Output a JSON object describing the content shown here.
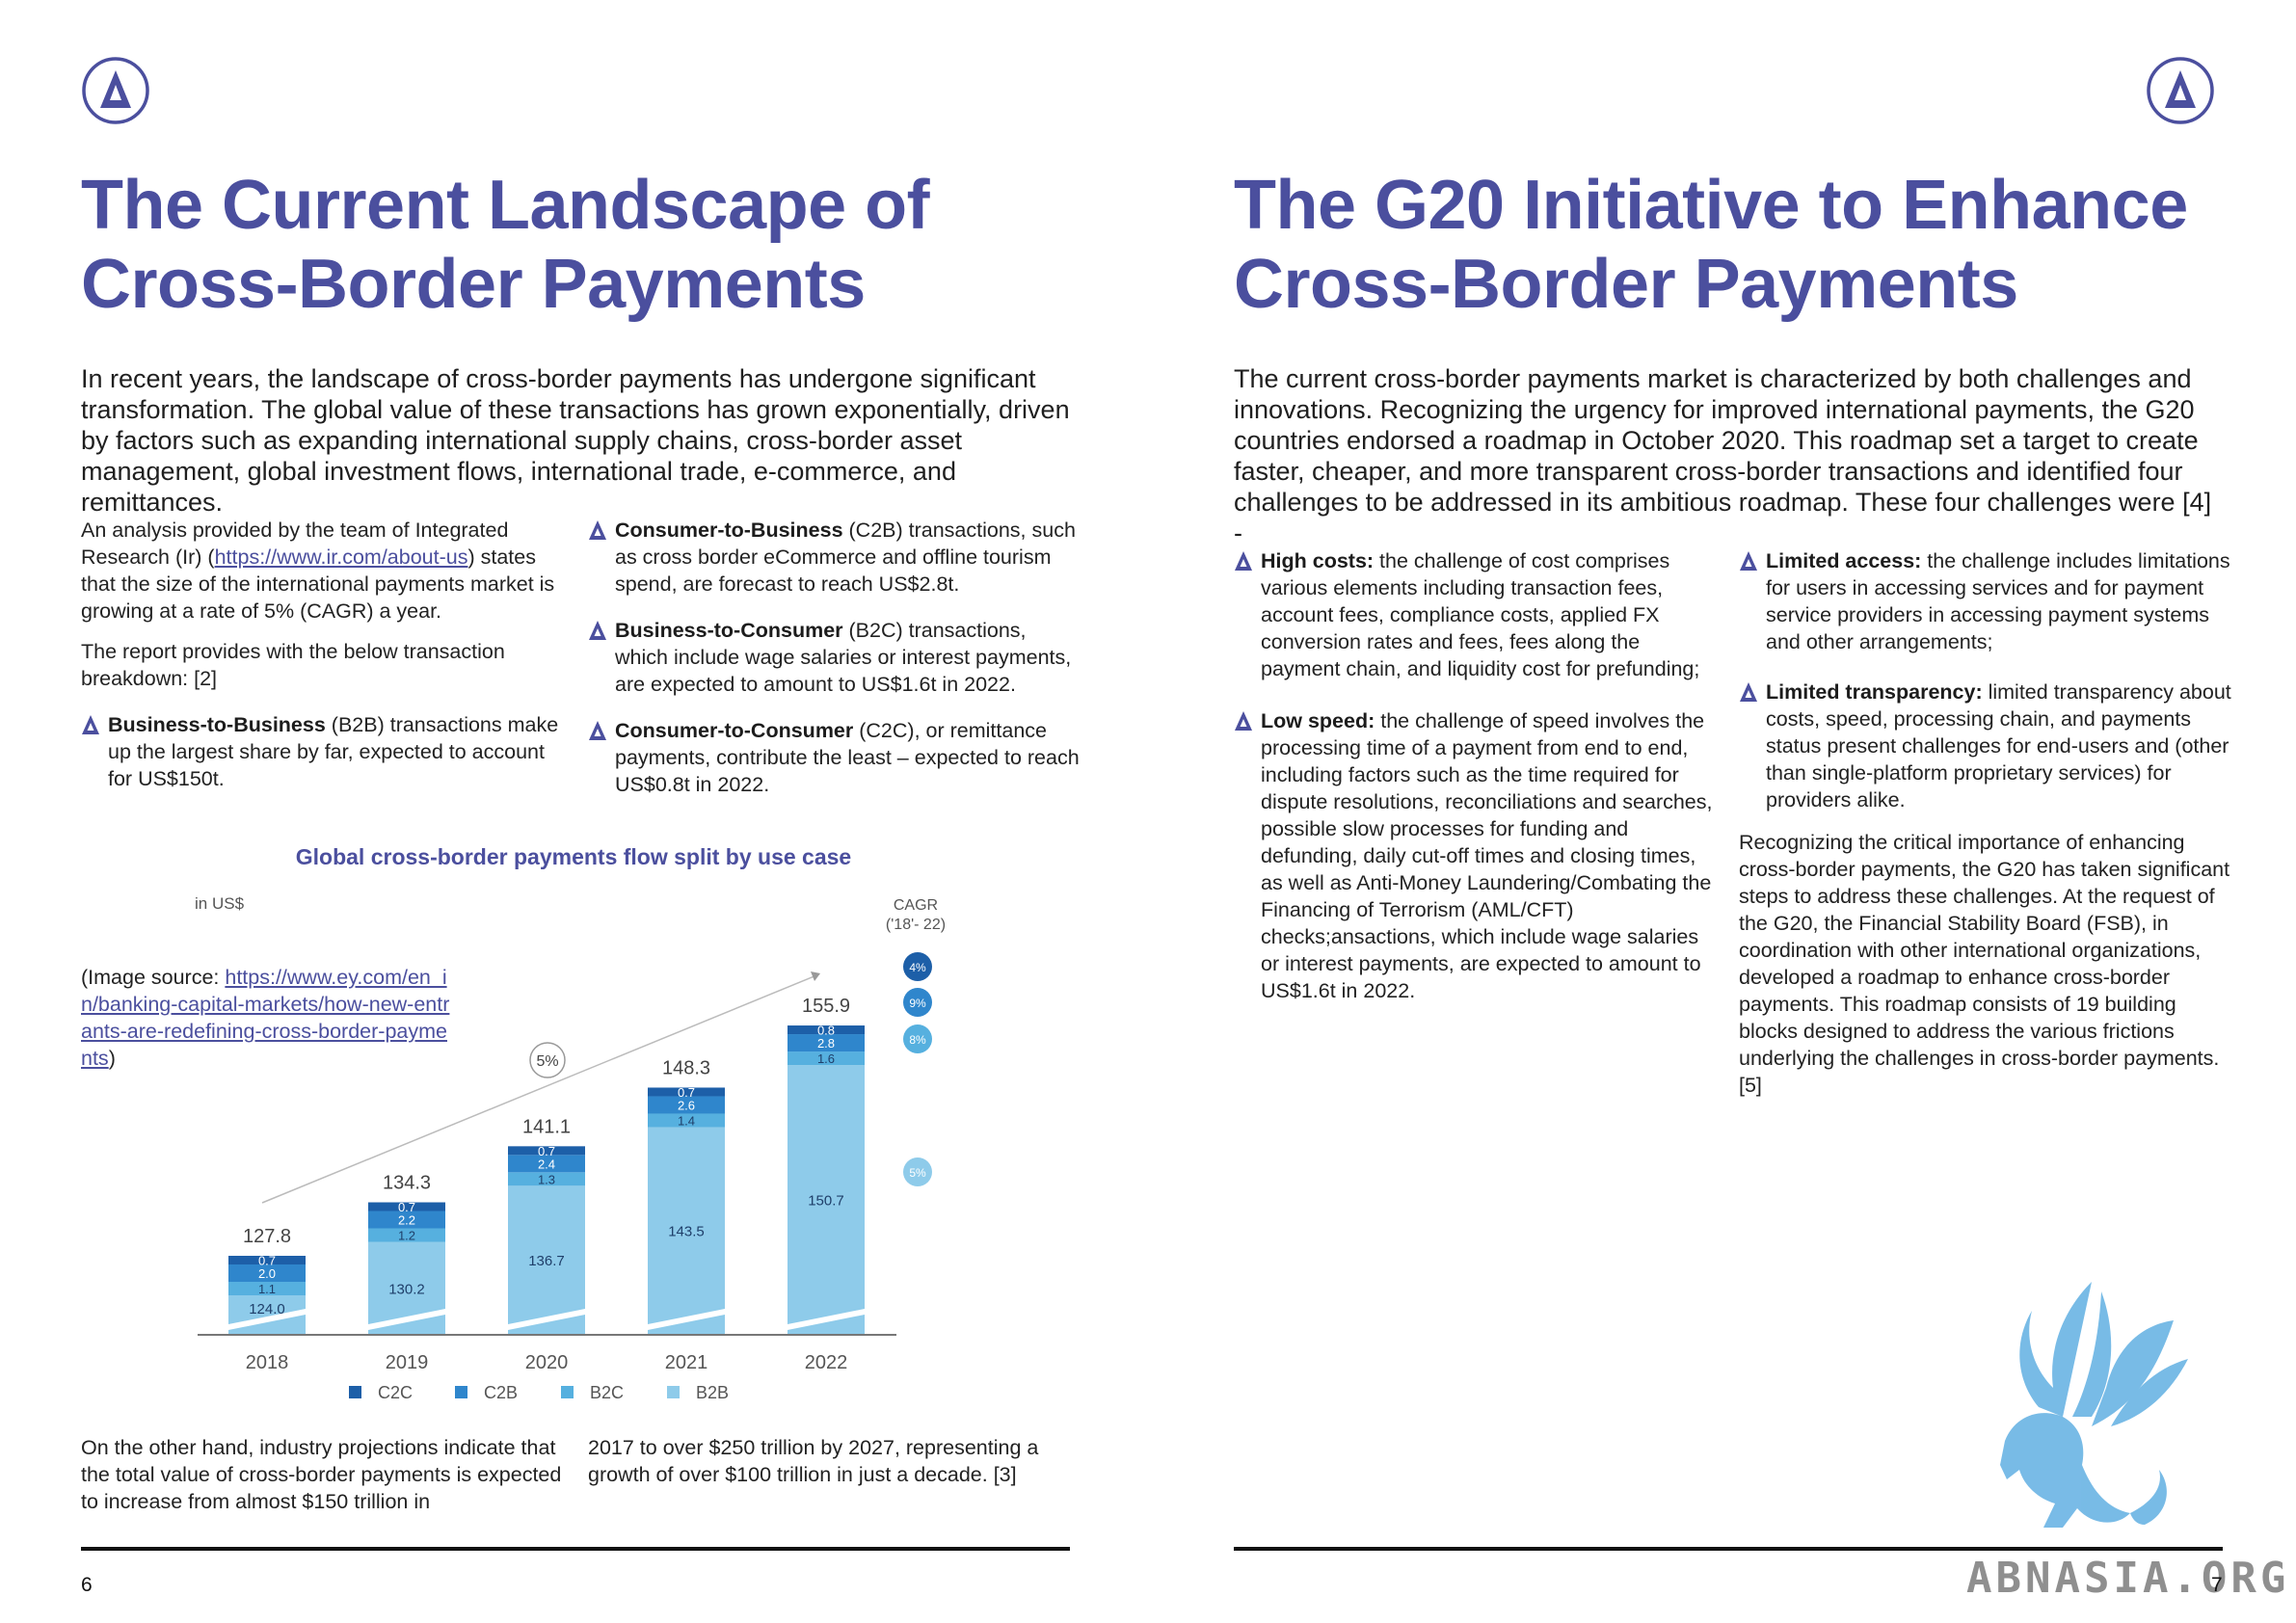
{
  "left": {
    "title_line1": "The Current Landscape of",
    "title_line2": "Cross-Border Payments",
    "intro": "In recent years, the landscape of cross-border payments has undergone significant transformation. The global value of these transactions has grown exponentially, driven by factors such as expanding international supply chains, cross-border asset management, global investment flows, international trade, e-commerce, and remittances.",
    "col1_p1_a": "An analysis provided by the team of Integrated Research (Ir) (",
    "col1_p1_link": "https://www.ir.com/about-us",
    "col1_p1_b": ") states that the size of the international payments market is growing at a rate of 5% (CAGR) a year.",
    "col1_p2": "The report provides with the below transaction breakdown: [2]",
    "b2b_bold": "Business-to-Business",
    "b2b_text": " (B2B) transactions make up the largest share by far, expected to account for US$150t.",
    "c2b_bold": "Consumer-to-Business",
    "c2b_text": " (C2B) transactions, such as cross border eCommerce and offline tourism spend, are forecast to reach US$2.8t.",
    "b2c_bold": "Business-to-Consumer",
    "b2c_text": " (B2C) transactions, which include wage salaries or interest payments, are expected to amount to US$1.6t in 2022.",
    "c2c_bold": "Consumer-to-Consumer",
    "c2c_text": " (C2C), or remittance payments, contribute the least – expected to reach US$0.8t in 2022.",
    "image_source_prefix": "(Image source: ",
    "image_source_link": "https://www.ey.com/en_in/banking-capital-markets/how-new-entrants-are-redefining-cross-border-payments",
    "image_source_suffix": ")",
    "bottom_col1": "On the other hand, industry projections indicate that the total value of cross-border payments is expected to increase from almost $150 trillion in",
    "bottom_col2": "2017 to over $250 trillion by 2027, representing a growth of over $100 trillion in just a decade. [3]",
    "page_number": "6"
  },
  "right": {
    "title_line1": "The G20 Initiative to Enhance",
    "title_line2": "Cross-Border Payments",
    "intro": "The current cross-border payments market is characterized by both challenges and innovations. Recognizing the urgency for improved international payments, the G20 countries endorsed a roadmap in October 2020. This roadmap set a target to create faster, cheaper, and more transparent cross-border transactions and identified four challenges to be addressed in its ambitious roadmap. These four challenges were [4] -",
    "high_costs_bold": "High costs:",
    "high_costs_text": " the challenge of cost comprises various elements including transaction fees, account fees, compliance costs, applied FX conversion rates and fees, fees along the payment chain, and liquidity cost for prefunding;",
    "low_speed_bold": "Low speed:",
    "low_speed_text": " the challenge of speed involves the processing time of a payment from end to end, including factors such as the time required for dispute resolutions, reconciliations and searches, possible slow processes for funding and defunding, daily cut-off times and closing times, as well as Anti-Money Laundering/Combating the Financing of Terrorism (AML/CFT) checks;ansactions, which include wage salaries or interest payments, are expected to amount to US$1.6t in 2022.",
    "limited_access_bold": "Limited access:",
    "limited_access_text": " the challenge includes limitations for users in accessing services and for payment service providers in accessing payment systems and other arrangements;",
    "limited_transparency_bold": "Limited transparency:",
    "limited_transparency_text": " limited transparency about costs, speed, processing chain, and payments status present challenges for end-users and (other than single-platform proprietary services) for providers alike.",
    "closing": "Recognizing the critical importance of enhancing cross-border payments, the G20 has taken significant steps to address these challenges. At the request of the G20, the Financial Stability Board (FSB), in coordination with other international organizations, developed a roadmap to enhance cross-border payments. This roadmap consists of 19 building blocks designed to address the various frictions underlying the challenges in cross-border payments. [5]",
    "page_number": "7",
    "watermark": "ABNASIA.ORG"
  },
  "chart_data": {
    "type": "bar",
    "stacked": true,
    "title": "Global cross-border payments flow split by use case",
    "unit_label": "in US$",
    "categories": [
      "2018",
      "2019",
      "2020",
      "2021",
      "2022"
    ],
    "totals": [
      "127.8",
      "134.3",
      "141.1",
      "148.3",
      "155.9"
    ],
    "series": [
      {
        "name": "B2B",
        "values": [
          124.0,
          130.2,
          136.7,
          143.5,
          150.7
        ],
        "labels": [
          "124.0",
          "130.2",
          "136.7",
          "143.5",
          "150.7"
        ],
        "color": "#8ecbea"
      },
      {
        "name": "B2C",
        "values": [
          1.1,
          1.2,
          1.3,
          1.4,
          1.6
        ],
        "labels": [
          "1.1",
          "1.2",
          "1.3",
          "1.4",
          "1.6"
        ],
        "color": "#56b0df"
      },
      {
        "name": "C2B",
        "values": [
          2.0,
          2.2,
          2.4,
          2.6,
          2.8
        ],
        "labels": [
          "2.0",
          "2.2",
          "2.4",
          "2.6",
          "2.8"
        ],
        "color": "#2f86cc"
      },
      {
        "name": "C2C",
        "values": [
          0.7,
          0.7,
          0.7,
          0.7,
          0.8
        ],
        "labels": [
          "0.7",
          "0.7",
          "0.7",
          "0.7",
          "0.8"
        ],
        "color": "#1d5fa8"
      }
    ],
    "legend_order": [
      "C2C",
      "C2B",
      "B2C",
      "B2B"
    ],
    "cagr_header_1": "CAGR",
    "cagr_header_2": "('18'- 22)",
    "cagr": [
      {
        "series": "C2C",
        "label": "4%"
      },
      {
        "series": "C2B",
        "label": "9%"
      },
      {
        "series": "B2C",
        "label": "8%"
      },
      {
        "series": "B2B",
        "label": "5%"
      }
    ],
    "trend_label": "5%",
    "legend_position": "bottom"
  }
}
